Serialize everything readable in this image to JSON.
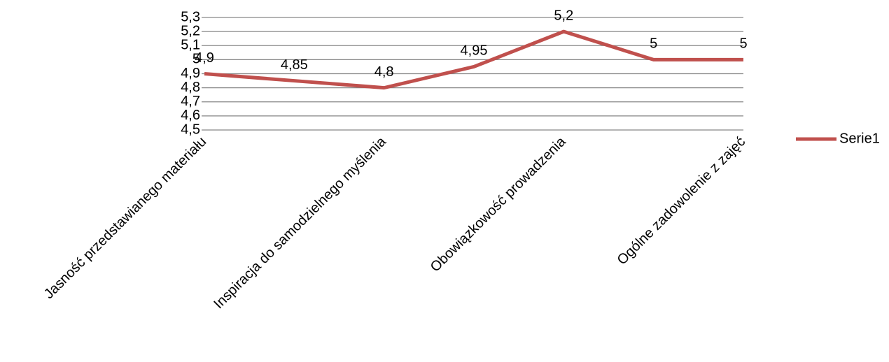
{
  "chart_data": {
    "type": "line",
    "categories": [
      "Jasność przedstawianego materiału",
      null,
      "Inspiracja do samodzielnego myślenia",
      null,
      "Obowiązkowość prowadzenia",
      null,
      "Ogólne zadowolenie z zajęć"
    ],
    "series": [
      {
        "name": "Serie1",
        "color": "#c0504d",
        "values": [
          4.9,
          4.85,
          4.8,
          4.95,
          5.2,
          5,
          5
        ],
        "value_labels": [
          "4,9",
          "4,85",
          "4,8",
          "4,95",
          "5,2",
          "5",
          "5"
        ]
      }
    ],
    "ylim": [
      4.5,
      5.3
    ],
    "yticks": [
      {
        "value": 4.5,
        "label": "4,5"
      },
      {
        "value": 4.6,
        "label": "4,6"
      },
      {
        "value": 4.7,
        "label": "4,7"
      },
      {
        "value": 4.8,
        "label": "4,8"
      },
      {
        "value": 4.9,
        "label": "4,9"
      },
      5,
      {
        "value": 5.1,
        "label": "5,1"
      },
      {
        "value": 5.2,
        "label": "5,2"
      },
      {
        "value": 5.3,
        "label": "5,3"
      }
    ],
    "grid": true,
    "legend": "right"
  }
}
